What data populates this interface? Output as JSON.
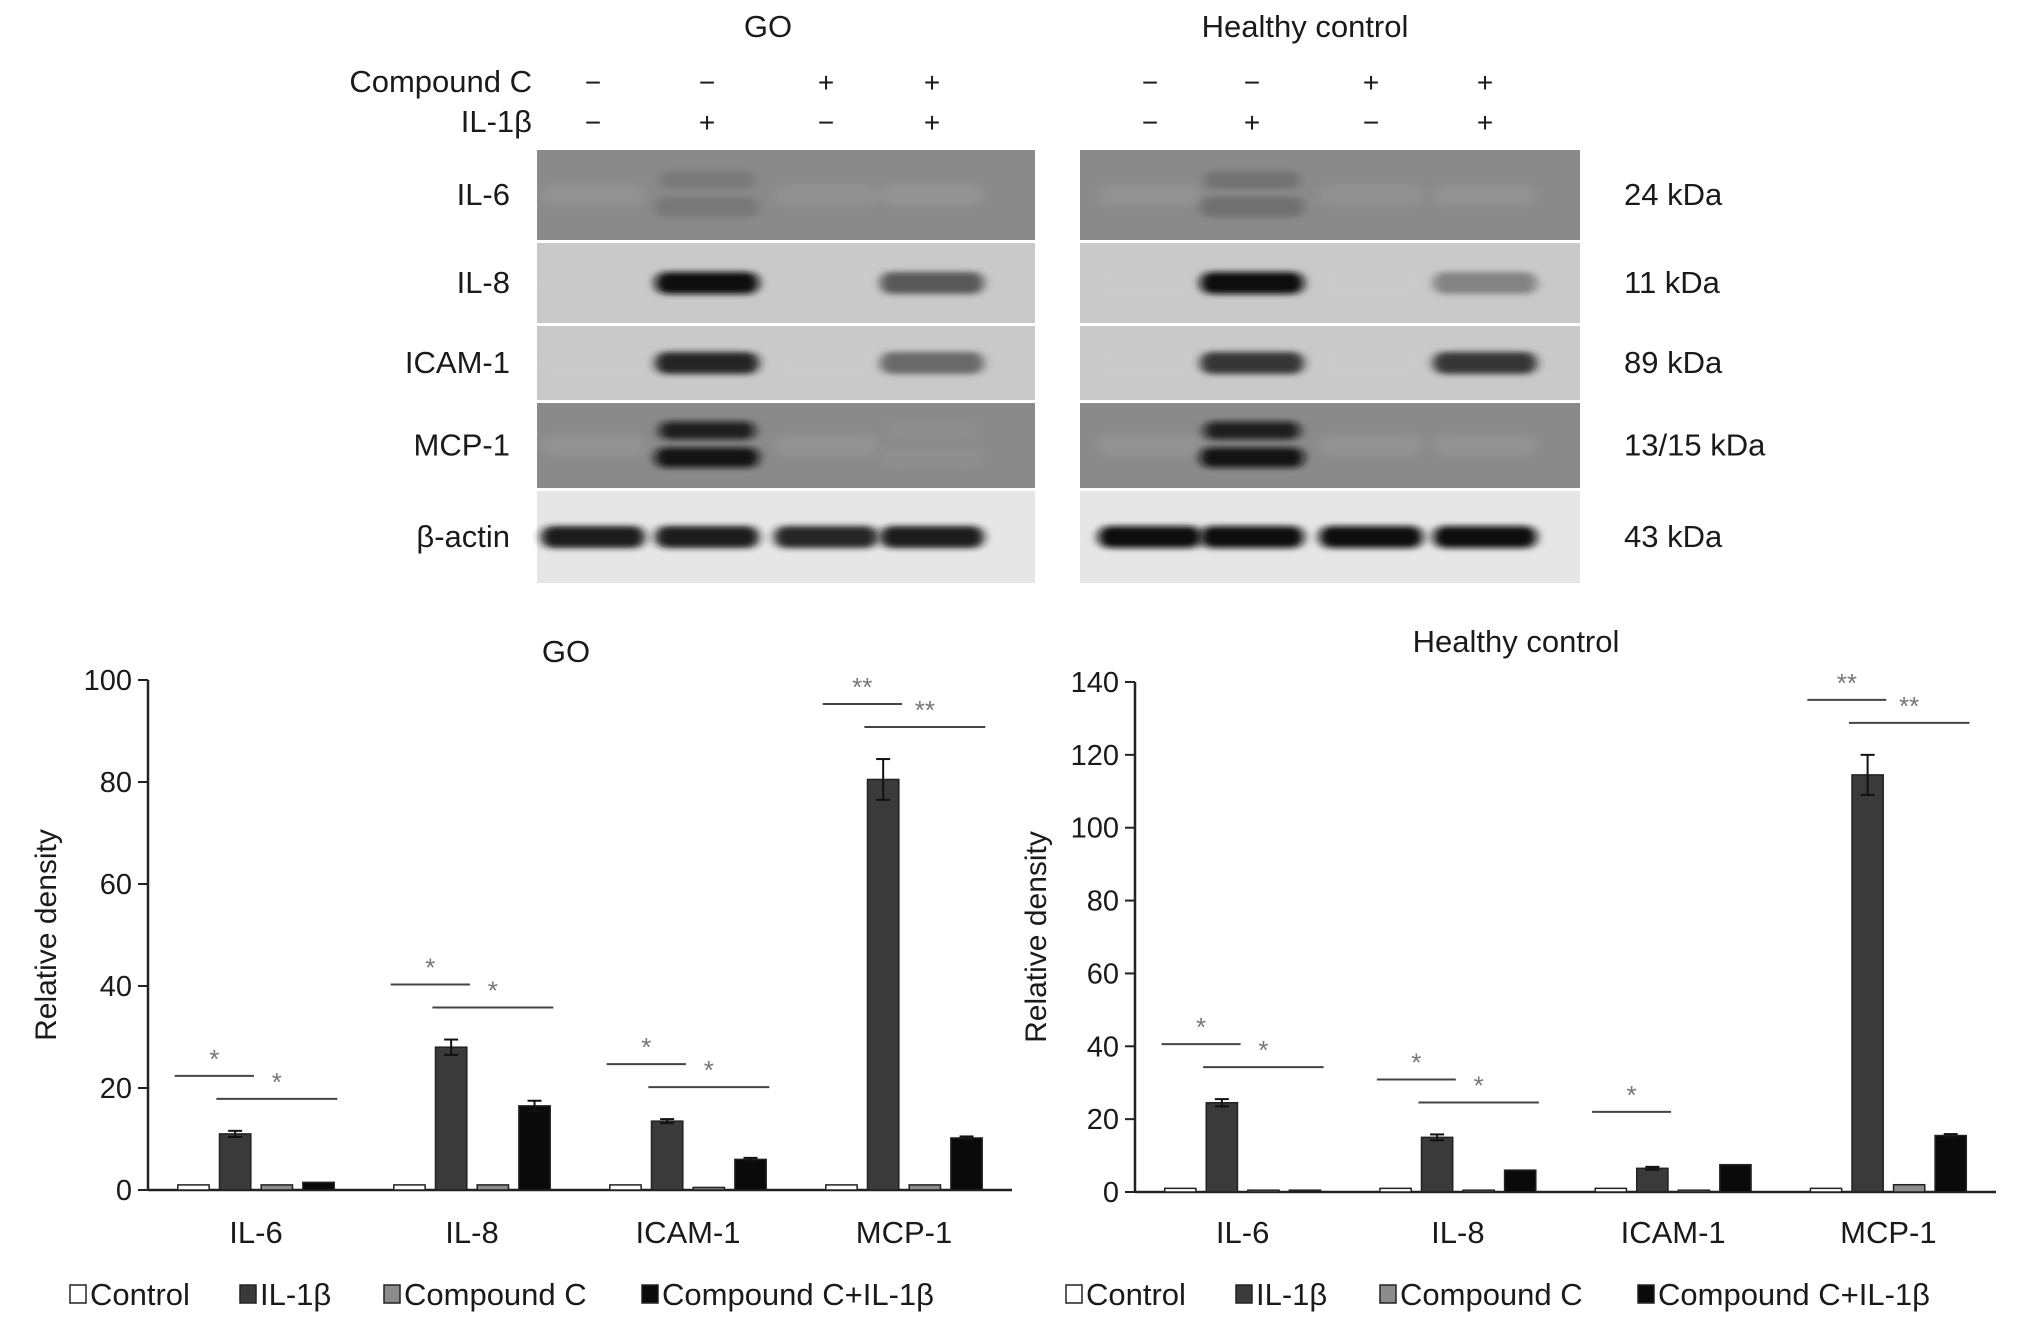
{
  "colors": {
    "Control": "#ffffff",
    "IL-1β": "#3a3a3a",
    "Compound C": "#8c8c8c",
    "Compound C+IL-1β": "#0a0a0a"
  },
  "blot": {
    "row_labels": [
      "Compound C",
      "IL-1β"
    ],
    "panels": [
      {
        "title": "GO",
        "compound_c": [
          "−",
          "−",
          "+",
          "+"
        ],
        "il1b": [
          "−",
          "+",
          "−",
          "+"
        ],
        "proteins": [
          {
            "name": "IL-6",
            "intensity": [
              0.05,
              0.55,
              0.03,
              0.08
            ]
          },
          {
            "name": "IL-8",
            "intensity": [
              0.08,
              0.95,
              0.06,
              0.75
            ]
          },
          {
            "name": "ICAM-1",
            "intensity": [
              0.05,
              0.9,
              0.04,
              0.7
            ]
          },
          {
            "name": "MCP-1",
            "intensity": [
              0.06,
              0.95,
              0.05,
              0.35
            ]
          },
          {
            "name": "β-actin",
            "intensity": [
              0.92,
              0.92,
              0.9,
              0.92
            ]
          }
        ]
      },
      {
        "title": "Healthy control",
        "compound_c": [
          "−",
          "−",
          "+",
          "+"
        ],
        "il1b": [
          "−",
          "+",
          "−",
          "+"
        ],
        "proteins": [
          {
            "name": "IL-6",
            "intensity": [
              0.04,
              0.6,
              0.03,
              0.04
            ]
          },
          {
            "name": "IL-8",
            "intensity": [
              0.05,
              0.95,
              0.04,
              0.6
            ]
          },
          {
            "name": "ICAM-1",
            "intensity": [
              0.05,
              0.85,
              0.04,
              0.85
            ]
          },
          {
            "name": "MCP-1",
            "intensity": [
              0.06,
              0.95,
              0.05,
              0.3
            ]
          },
          {
            "name": "β-actin",
            "intensity": [
              0.98,
              0.98,
              0.97,
              0.96
            ]
          }
        ]
      }
    ],
    "kda": [
      "24 kDa",
      "11 kDa",
      "89 kDa",
      "13/15 kDa",
      "43 kDa"
    ]
  },
  "chart_data": [
    {
      "type": "bar",
      "title": "GO",
      "xlabel": "",
      "ylabel": "Relative density",
      "ylim": [
        0,
        100
      ],
      "yticks": [
        0,
        20,
        40,
        60,
        80,
        100
      ],
      "categories": [
        "IL-6",
        "IL-8",
        "ICAM-1",
        "MCP-1"
      ],
      "series": [
        {
          "name": "Control",
          "values": [
            1,
            1,
            1,
            1
          ],
          "errors": [
            0,
            0,
            0,
            0
          ]
        },
        {
          "name": "IL-1β",
          "values": [
            11,
            28,
            13.5,
            80.5
          ],
          "errors": [
            0.6,
            1.5,
            0.4,
            4
          ]
        },
        {
          "name": "Compound C",
          "values": [
            1,
            1,
            0.5,
            1
          ],
          "errors": [
            0,
            0,
            0,
            0
          ]
        },
        {
          "name": "Compound C+IL-1β",
          "values": [
            1.5,
            16.5,
            6,
            10.2
          ],
          "errors": [
            0,
            1,
            0.3,
            0.3
          ]
        }
      ],
      "significance": [
        {
          "category": 0,
          "from": 0,
          "to": 1,
          "label": "*"
        },
        {
          "category": 0,
          "from": 1,
          "to": 3,
          "label": "*"
        },
        {
          "category": 1,
          "from": 0,
          "to": 1,
          "label": "*"
        },
        {
          "category": 1,
          "from": 1,
          "to": 3,
          "label": "*"
        },
        {
          "category": 2,
          "from": 0,
          "to": 1,
          "label": "*"
        },
        {
          "category": 2,
          "from": 1,
          "to": 3,
          "label": "*"
        },
        {
          "category": 3,
          "from": 0,
          "to": 1,
          "label": "**"
        },
        {
          "category": 3,
          "from": 1,
          "to": 3,
          "label": "**"
        }
      ],
      "legend_position": "bottom"
    },
    {
      "type": "bar",
      "title": "Healthy control",
      "xlabel": "",
      "ylabel": "Relative density",
      "ylim": [
        0,
        140
      ],
      "yticks": [
        0,
        20,
        40,
        60,
        80,
        100,
        120,
        140
      ],
      "categories": [
        "IL-6",
        "IL-8",
        "ICAM-1",
        "MCP-1"
      ],
      "series": [
        {
          "name": "Control",
          "values": [
            1,
            1,
            1,
            1
          ],
          "errors": [
            0,
            0,
            0,
            0
          ]
        },
        {
          "name": "IL-1β",
          "values": [
            24.5,
            15,
            6.5,
            114.5
          ],
          "errors": [
            1,
            0.8,
            0.4,
            5.5
          ]
        },
        {
          "name": "Compound C",
          "values": [
            0.5,
            0.5,
            0.5,
            2
          ],
          "errors": [
            0,
            0,
            0,
            0
          ]
        },
        {
          "name": "Compound C+IL-1β",
          "values": [
            0.5,
            6,
            7.5,
            15.5
          ],
          "errors": [
            0,
            0,
            0,
            0.4
          ]
        }
      ],
      "significance": [
        {
          "category": 0,
          "from": 0,
          "to": 1,
          "label": "*"
        },
        {
          "category": 0,
          "from": 1,
          "to": 3,
          "label": "*"
        },
        {
          "category": 1,
          "from": 0,
          "to": 1,
          "label": "*"
        },
        {
          "category": 1,
          "from": 1,
          "to": 3,
          "label": "*"
        },
        {
          "category": 2,
          "from": 0,
          "to": 1,
          "label": "*"
        },
        {
          "category": 3,
          "from": 0,
          "to": 1,
          "label": "**"
        },
        {
          "category": 3,
          "from": 1,
          "to": 3,
          "label": "**"
        }
      ],
      "legend_position": "bottom"
    }
  ]
}
